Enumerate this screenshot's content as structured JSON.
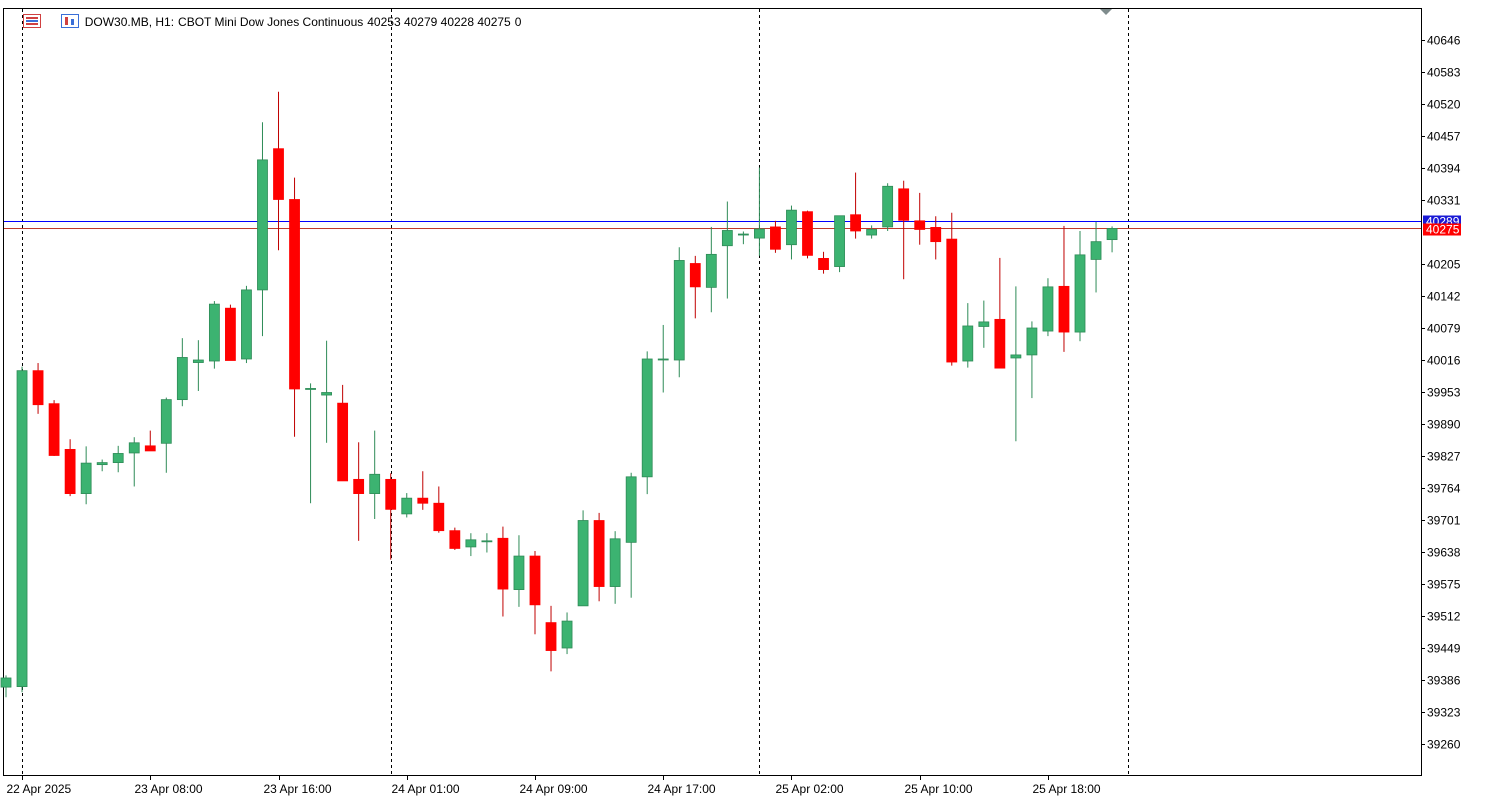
{
  "header": {
    "symbol": "DOW30.MB, H1:",
    "description": "CBOT Mini Dow Jones Continuous",
    "ohlc": "40253 40279 40228 40275",
    "volume": "0"
  },
  "price_labels": {
    "bid": "40289",
    "last": "40275"
  },
  "colors": {
    "bull": "#3cb371",
    "bear": "#ff0000",
    "wick_bull": "#2e8b57",
    "wick_bear": "#c00000",
    "bid_line": "#0000ff",
    "last_line": "#c0392b",
    "bid_tag": "#1a1ad6",
    "last_tag": "#ff0000"
  },
  "chart_data": {
    "type": "candlestick",
    "symbol": "DOW30.MB",
    "timeframe": "H1",
    "ylim": [
      39197,
      40709
    ],
    "yticks": [
      40646,
      40583,
      40520,
      40457,
      40394,
      40331,
      40205,
      40142,
      40079,
      40016,
      39953,
      39890,
      39827,
      39764,
      39701,
      39638,
      39575,
      39512,
      39449,
      39386,
      39323,
      39260
    ],
    "xticks": [
      {
        "index": 1,
        "label": "22 Apr 2025"
      },
      {
        "index": 9,
        "label": "23 Apr 08:00"
      },
      {
        "index": 17,
        "label": "23 Apr 16:00"
      },
      {
        "index": 25,
        "label": "24 Apr 01:00"
      },
      {
        "index": 33,
        "label": "24 Apr 09:00"
      },
      {
        "index": 41,
        "label": "24 Apr 17:00"
      },
      {
        "index": 49,
        "label": "25 Apr 02:00"
      },
      {
        "index": 57,
        "label": "25 Apr 10:00"
      },
      {
        "index": 65,
        "label": "25 Apr 18:00"
      }
    ],
    "separators": [
      1,
      24,
      47,
      70
    ],
    "bid": 40289,
    "last": 40275,
    "candles": [
      [
        39372,
        39395,
        39352,
        39390
      ],
      [
        39373,
        40003,
        39362,
        39995
      ],
      [
        39995,
        40010,
        39910,
        39928
      ],
      [
        39930,
        39937,
        39827,
        39828
      ],
      [
        39840,
        39860,
        39748,
        39753
      ],
      [
        39753,
        39846,
        39732,
        39813
      ],
      [
        39810,
        39820,
        39797,
        39814
      ],
      [
        39814,
        39847,
        39795,
        39832
      ],
      [
        39833,
        39864,
        39767,
        39853
      ],
      [
        39847,
        39877,
        39837,
        39837
      ],
      [
        39852,
        39942,
        39794,
        39938
      ],
      [
        39938,
        40059,
        39925,
        40021
      ],
      [
        40011,
        40055,
        39955,
        40016
      ],
      [
        40014,
        40132,
        39999,
        40126
      ],
      [
        40118,
        40125,
        40018,
        40015
      ],
      [
        40018,
        40162,
        40010,
        40154
      ],
      [
        40154,
        40484,
        40063,
        40410
      ],
      [
        40432,
        40544,
        40232,
        40332
      ],
      [
        40332,
        40375,
        39865,
        39959
      ],
      [
        39958,
        39970,
        39734,
        39960
      ],
      [
        39947,
        40054,
        39853,
        39952
      ],
      [
        39931,
        39967,
        39791,
        39778
      ],
      [
        39781,
        39854,
        39660,
        39753
      ],
      [
        39753,
        39877,
        39703,
        39791
      ],
      [
        39781,
        39793,
        39623,
        39722
      ],
      [
        39713,
        39754,
        39706,
        39744
      ],
      [
        39744,
        39797,
        39721,
        39734
      ],
      [
        39734,
        39767,
        39676,
        39680
      ],
      [
        39680,
        39686,
        39642,
        39645
      ],
      [
        39648,
        39675,
        39630,
        39662
      ],
      [
        39660,
        39675,
        39637,
        39660
      ],
      [
        39665,
        39688,
        39511,
        39565
      ],
      [
        39564,
        39671,
        39530,
        39630
      ],
      [
        39630,
        39640,
        39476,
        39534
      ],
      [
        39499,
        39532,
        39403,
        39444
      ],
      [
        39449,
        39519,
        39437,
        39502
      ],
      [
        39532,
        39720,
        39532,
        39700
      ],
      [
        39700,
        39715,
        39541,
        39570
      ],
      [
        39570,
        39679,
        39536,
        39664
      ],
      [
        39657,
        39794,
        39548,
        39786
      ],
      [
        39786,
        40033,
        39752,
        40018
      ],
      [
        40018,
        40085,
        39952,
        40018
      ],
      [
        40016,
        40238,
        39982,
        40212
      ],
      [
        40206,
        40221,
        40098,
        40160
      ],
      [
        40159,
        40278,
        40110,
        40224
      ],
      [
        40241,
        40328,
        40137,
        40271
      ],
      [
        40264,
        40269,
        40244,
        40264
      ],
      [
        40256,
        40395,
        40221,
        40274
      ],
      [
        40278,
        40290,
        40227,
        40234
      ],
      [
        40243,
        40320,
        40214,
        40311
      ],
      [
        40308,
        40310,
        40216,
        40222
      ],
      [
        40216,
        40229,
        40186,
        40194
      ],
      [
        40200,
        40300,
        40189,
        40300
      ],
      [
        40302,
        40385,
        40255,
        40270
      ],
      [
        40262,
        40281,
        40255,
        40273
      ],
      [
        40278,
        40364,
        40270,
        40358
      ],
      [
        40353,
        40369,
        40175,
        40291
      ],
      [
        40290,
        40345,
        40243,
        40273
      ],
      [
        40277,
        40299,
        40214,
        40249
      ],
      [
        40254,
        40306,
        40005,
        40012
      ],
      [
        40014,
        40128,
        40001,
        40083
      ],
      [
        40082,
        40133,
        40040,
        40091
      ],
      [
        40096,
        40217,
        40004,
        40000
      ],
      [
        40020,
        40161,
        39856,
        40026
      ],
      [
        40026,
        40092,
        39941,
        40079
      ],
      [
        40073,
        40177,
        40063,
        40160
      ],
      [
        40161,
        40280,
        40032,
        40071
      ],
      [
        40071,
        40270,
        40053,
        40223
      ],
      [
        40214,
        40288,
        40149,
        40249
      ],
      [
        40253,
        40279,
        40228,
        40275
      ]
    ]
  }
}
